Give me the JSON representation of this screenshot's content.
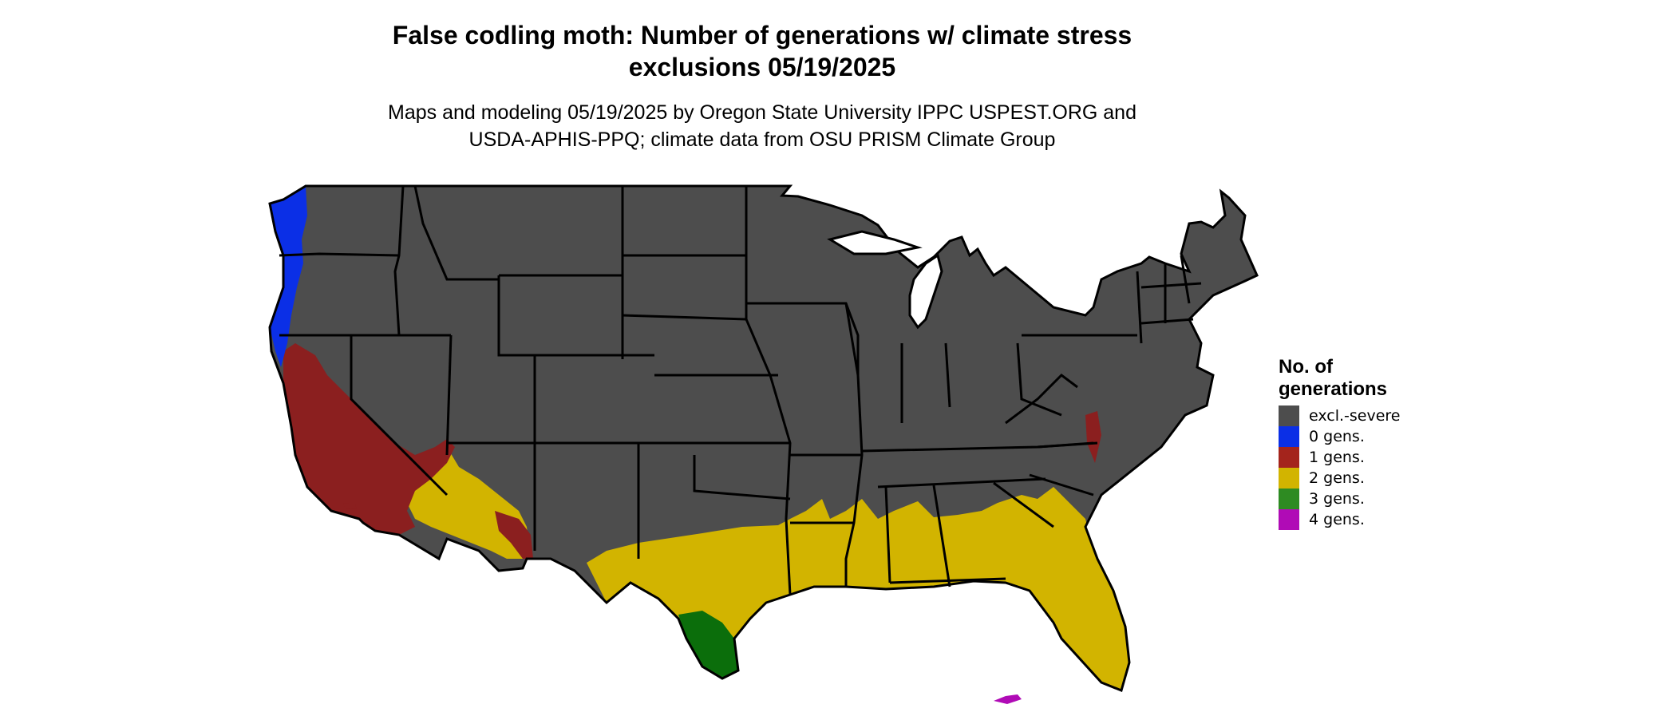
{
  "title_line1": "False codling moth: Number of generations w/ climate stress",
  "title_line2": "exclusions 05/19/2025",
  "subtitle_line1": "Maps and modeling 05/19/2025 by Oregon State University IPPC USPEST.ORG and",
  "subtitle_line2": "USDA-APHIS-PPQ; climate data from OSU PRISM Climate Group",
  "legend": {
    "title_line1": "No. of",
    "title_line2": "generations",
    "items": [
      {
        "label": "excl.-severe",
        "color": "#4d4d4d"
      },
      {
        "label": "0 gens.",
        "color": "#0b2fe6"
      },
      {
        "label": "1 gens.",
        "color": "#a4241c"
      },
      {
        "label": "2 gens.",
        "color": "#d2b400"
      },
      {
        "label": "3 gens.",
        "color": "#2e8b22"
      },
      {
        "label": "4 gens.",
        "color": "#b00bb6"
      }
    ]
  },
  "map_colors": {
    "excluded": "#4d4d4d",
    "zero": "#0b2fe6",
    "one": "#8b1f1f",
    "one_bright": "#ff4a1c",
    "two": "#d2b400",
    "three": "#0b6e0b",
    "four": "#b00bb6",
    "border": "#000000"
  }
}
